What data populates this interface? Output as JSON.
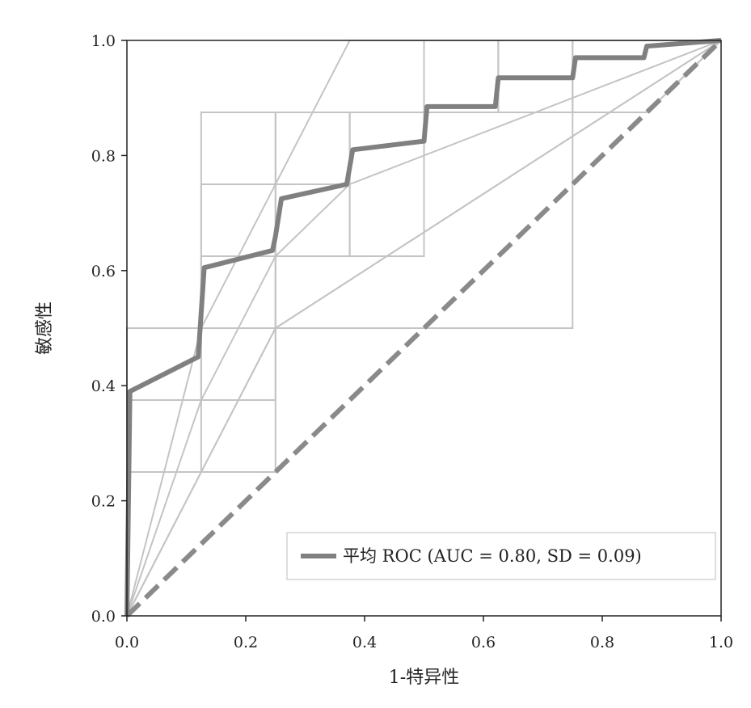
{
  "chart_data": {
    "type": "line",
    "xlabel": "1-特异性",
    "ylabel": "敏感性",
    "xlim": [
      0.0,
      1.0
    ],
    "ylim": [
      0.0,
      1.0
    ],
    "x_ticks": [
      "0.0",
      "0.2",
      "0.4",
      "0.6",
      "0.8",
      "1.0"
    ],
    "y_ticks": [
      "0.0",
      "0.2",
      "0.4",
      "0.6",
      "0.8",
      "1.0"
    ],
    "grid": false,
    "legend": {
      "position": "bottom-right",
      "entries": [
        "平均 ROC (AUC = 0.80, SD = 0.09)"
      ]
    },
    "colors": {
      "mean_roc": "#808080",
      "fold_roc": "#c4c4c4",
      "chance": "#8a8a8a",
      "axis": "#222222"
    },
    "series": [
      {
        "name": "平均 ROC (AUC = 0.80, SD = 0.09)",
        "role": "mean",
        "x": [
          0.0,
          0.005,
          0.12,
          0.13,
          0.245,
          0.25,
          0.26,
          0.37,
          0.38,
          0.5,
          0.505,
          0.62,
          0.625,
          0.75,
          0.755,
          0.87,
          0.875,
          1.0
        ],
        "y": [
          0.0,
          0.39,
          0.45,
          0.605,
          0.635,
          0.66,
          0.725,
          0.75,
          0.81,
          0.825,
          0.885,
          0.885,
          0.935,
          0.935,
          0.97,
          0.97,
          0.99,
          1.0
        ]
      },
      {
        "role": "chance",
        "x": [
          0.0,
          1.0
        ],
        "y": [
          0.0,
          1.0
        ]
      }
    ],
    "fold_curves": [
      {
        "x": [
          0,
          0,
          0.125,
          0.125,
          0.25,
          0.25,
          0.375,
          0.375,
          0.5,
          0.5,
          0.625,
          0.625,
          1
        ],
        "y": [
          0,
          0.375,
          0.375,
          0.625,
          0.625,
          0.75,
          0.75,
          0.875,
          0.875,
          1,
          1,
          1,
          1
        ]
      },
      {
        "x": [
          0,
          0,
          0.125,
          0.125,
          0.25,
          0.25,
          0.375,
          0.375,
          0.625,
          0.625,
          0.75,
          0.75,
          1
        ],
        "y": [
          0,
          0.5,
          0.5,
          0.75,
          0.75,
          0.875,
          0.875,
          0.875,
          0.875,
          0.875,
          0.875,
          1,
          1
        ]
      },
      {
        "x": [
          0,
          0,
          0.25,
          0.25,
          0.375,
          0.375,
          0.5,
          0.5,
          0.75,
          0.75,
          0.875,
          0.875,
          1
        ],
        "y": [
          0,
          0.25,
          0.25,
          0.625,
          0.625,
          0.625,
          0.625,
          0.875,
          0.875,
          0.875,
          0.875,
          0.875,
          1
        ]
      },
      {
        "x": [
          0,
          0,
          0.125,
          0.125,
          0.25,
          0.25,
          0.375,
          0.375,
          0.5,
          0.5,
          0.625,
          0.625,
          1
        ],
        "y": [
          0,
          0.375,
          0.375,
          0.5,
          0.5,
          0.625,
          0.625,
          0.875,
          0.875,
          0.875,
          0.875,
          1,
          1
        ]
      },
      {
        "x": [
          0,
          0,
          0.125,
          0.125,
          0.25,
          0.25,
          0.375,
          0.375,
          0.5,
          0.5,
          0.625,
          0.625,
          1
        ],
        "y": [
          0,
          0.5,
          0.5,
          0.5,
          0.5,
          0.625,
          0.625,
          0.875,
          0.875,
          0.875,
          0.875,
          1,
          1
        ]
      },
      {
        "x": [
          0,
          0,
          0.125,
          0.125,
          0.25,
          0.25,
          0.5,
          0.5,
          0.625,
          0.625,
          0.75,
          0.75,
          1
        ],
        "y": [
          0,
          0.375,
          0.375,
          0.625,
          0.625,
          0.875,
          0.875,
          0.875,
          0.875,
          0.875,
          0.875,
          1,
          1
        ]
      },
      {
        "x": [
          0,
          0,
          0.125,
          0.125,
          0.25,
          0.25,
          0.375,
          0.375,
          0.75,
          0.75,
          0.875,
          0.875,
          1
        ],
        "y": [
          0,
          0.25,
          0.25,
          0.375,
          0.375,
          0.5,
          0.5,
          0.5,
          0.5,
          0.875,
          0.875,
          0.875,
          1
        ]
      },
      {
        "x": [
          0,
          0,
          0.125,
          0.125,
          0.25,
          0.25,
          0.375,
          0.375,
          0.5,
          0.5,
          0.625,
          0.625,
          1
        ],
        "y": [
          0,
          0.375,
          0.375,
          0.875,
          0.875,
          0.875,
          0.875,
          0.875,
          0.875,
          0.875,
          0.875,
          1,
          1
        ]
      },
      {
        "x": [
          0,
          0.125,
          0.375,
          1
        ],
        "y": [
          0,
          0.5,
          1,
          1
        ]
      },
      {
        "x": [
          0,
          0.125,
          0.25,
          0.375,
          1
        ],
        "y": [
          0,
          0.375,
          0.625,
          0.75,
          1
        ]
      },
      {
        "x": [
          0,
          0.25,
          1
        ],
        "y": [
          0,
          0.5,
          1
        ]
      },
      {
        "x": [
          0,
          0.125,
          0.25,
          1
        ],
        "y": [
          0,
          0.25,
          0.5,
          1
        ]
      }
    ]
  }
}
